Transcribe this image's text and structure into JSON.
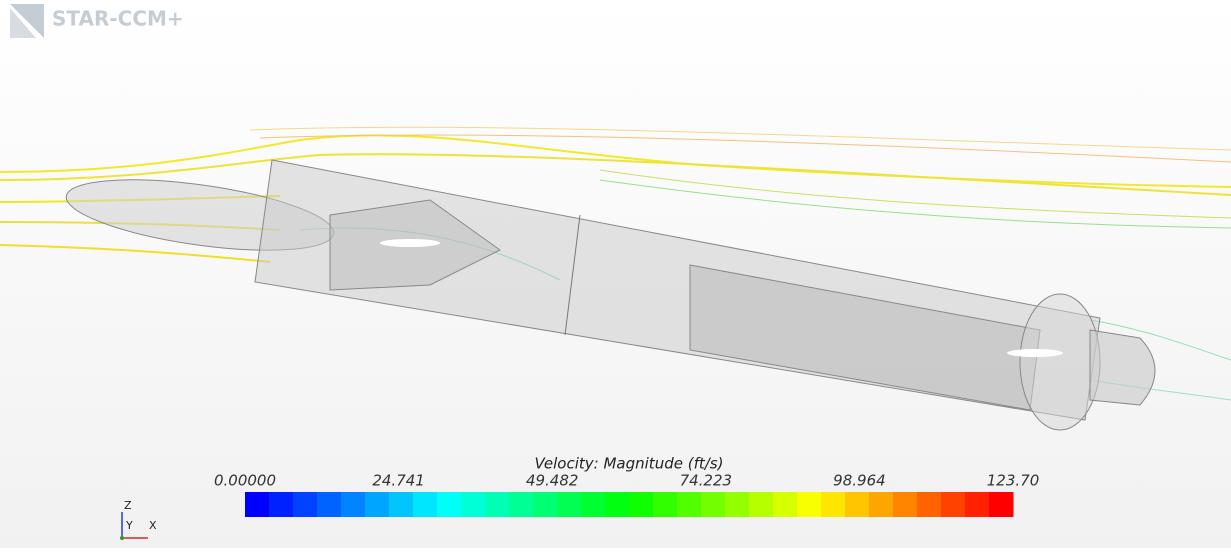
{
  "header": {
    "logo": "STAR-CCM+"
  },
  "colorbar": {
    "title": "Velocity: Magnitude (ft/s)",
    "range": [
      0,
      123.7
    ],
    "levels": 32,
    "ticks": [
      {
        "value": 0,
        "label": "0.00000"
      },
      24.741,
      49.482,
      74.223,
      98.964,
      {
        "value": 123.7,
        "label": "123.70"
      }
    ]
  },
  "triad": {
    "z": "Z",
    "y": "Y",
    "x": "X"
  }
}
